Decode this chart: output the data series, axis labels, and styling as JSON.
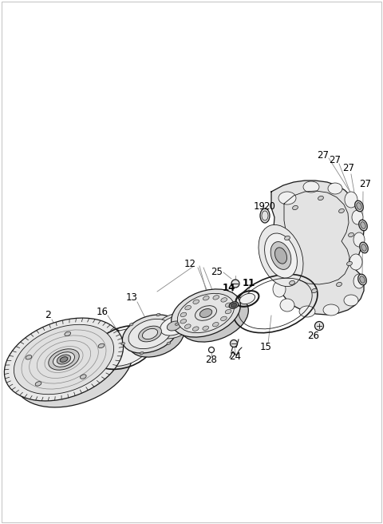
{
  "bg_color": "#ffffff",
  "dc": "#1a1a1a",
  "gc": "#888888",
  "lc": "#555555",
  "figsize": [
    4.8,
    6.56
  ],
  "dpi": 100,
  "fill_light": "#f0f0f0",
  "fill_mid": "#e0e0e0",
  "fill_dark": "#c8c8c8",
  "fill_darkest": "#b0b0b0"
}
